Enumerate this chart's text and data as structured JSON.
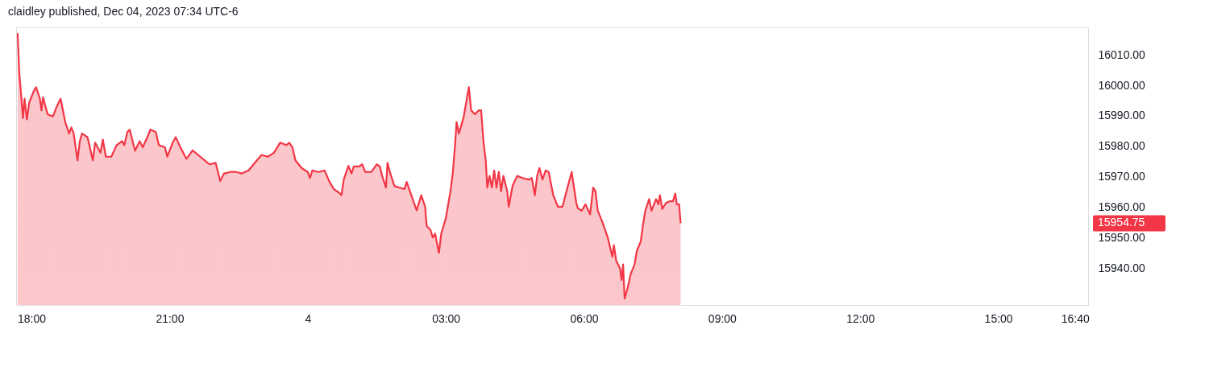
{
  "chart_data": {
    "type": "area",
    "title": "claidley published, Dec 04, 2023 07:34 UTC-6",
    "x": [
      "2023-12-03T17:42",
      "2023-12-03T17:44",
      "2023-12-03T17:49",
      "2023-12-03T17:51",
      "2023-12-03T17:54",
      "2023-12-03T17:57",
      "2023-12-03T18:03",
      "2023-12-03T18:06",
      "2023-12-03T18:11",
      "2023-12-03T18:13",
      "2023-12-03T18:15",
      "2023-12-03T18:21",
      "2023-12-03T18:28",
      "2023-12-03T18:33",
      "2023-12-03T18:38",
      "2023-12-03T18:44",
      "2023-12-03T18:49",
      "2023-12-03T18:52",
      "2023-12-03T18:55",
      "2023-12-03T19:00",
      "2023-12-03T19:03",
      "2023-12-03T19:06",
      "2023-12-03T19:13",
      "2023-12-03T19:20",
      "2023-12-03T19:23",
      "2023-12-03T19:30",
      "2023-12-03T19:33",
      "2023-12-03T19:37",
      "2023-12-03T19:44",
      "2023-12-03T19:51",
      "2023-12-03T19:58",
      "2023-12-03T20:01",
      "2023-12-03T20:05",
      "2023-12-03T20:08",
      "2023-12-03T20:15",
      "2023-12-03T20:21",
      "2023-12-03T20:25",
      "2023-12-03T20:31",
      "2023-12-03T20:35",
      "2023-12-03T20:42",
      "2023-12-03T20:46",
      "2023-12-03T20:54",
      "2023-12-03T20:57",
      "2023-12-03T21:04",
      "2023-12-03T21:08",
      "2023-12-03T21:15",
      "2023-12-03T21:22",
      "2023-12-03T21:30",
      "2023-12-03T21:40",
      "2023-12-03T21:52",
      "2023-12-03T22:00",
      "2023-12-03T22:06",
      "2023-12-03T22:11",
      "2023-12-03T22:19",
      "2023-12-03T22:27",
      "2023-12-03T22:34",
      "2023-12-03T22:43",
      "2023-12-03T22:52",
      "2023-12-03T23:00",
      "2023-12-03T23:08",
      "2023-12-03T23:16",
      "2023-12-03T23:24",
      "2023-12-03T23:32",
      "2023-12-03T23:36",
      "2023-12-03T23:40",
      "2023-12-03T23:44",
      "2023-12-03T23:52",
      "2023-12-04T00:00",
      "2023-12-04T00:03",
      "2023-12-04T00:06",
      "2023-12-04T00:14",
      "2023-12-04T00:22",
      "2023-12-04T00:28",
      "2023-12-04T00:34",
      "2023-12-04T00:41",
      "2023-12-04T00:44",
      "2023-12-04T00:47",
      "2023-12-04T00:53",
      "2023-12-04T00:57",
      "2023-12-04T01:00",
      "2023-12-04T01:07",
      "2023-12-04T01:11",
      "2023-12-04T01:15",
      "2023-12-04T01:23",
      "2023-12-04T01:30",
      "2023-12-04T01:34",
      "2023-12-04T01:37",
      "2023-12-04T01:42",
      "2023-12-04T01:44",
      "2023-12-04T01:47",
      "2023-12-04T01:53",
      "2023-12-04T01:59",
      "2023-12-04T02:06",
      "2023-12-04T02:09",
      "2023-12-04T02:15",
      "2023-12-04T02:22",
      "2023-12-04T02:28",
      "2023-12-04T02:33",
      "2023-12-04T02:35",
      "2023-12-04T02:40",
      "2023-12-04T02:43",
      "2023-12-04T02:46",
      "2023-12-04T02:51",
      "2023-12-04T02:54",
      "2023-12-04T03:00",
      "2023-12-04T03:06",
      "2023-12-04T03:09",
      "2023-12-04T03:12",
      "2023-12-04T03:14",
      "2023-12-04T03:17",
      "2023-12-04T03:23",
      "2023-12-04T03:30",
      "2023-12-04T03:33",
      "2023-12-04T03:38",
      "2023-12-04T03:43",
      "2023-12-04T03:46",
      "2023-12-04T03:49",
      "2023-12-04T03:52",
      "2023-12-04T03:54",
      "2023-12-04T03:57",
      "2023-12-04T04:00",
      "2023-12-04T04:03",
      "2023-12-04T04:06",
      "2023-12-04T04:09",
      "2023-12-04T04:12",
      "2023-12-04T04:15",
      "2023-12-04T04:20",
      "2023-12-04T04:22",
      "2023-12-04T04:27",
      "2023-12-04T04:33",
      "2023-12-04T04:40",
      "2023-12-04T04:48",
      "2023-12-04T04:52",
      "2023-12-04T04:56",
      "2023-12-04T04:59",
      "2023-12-04T05:02",
      "2023-12-04T05:06",
      "2023-12-04T05:10",
      "2023-12-04T05:14",
      "2023-12-04T05:20",
      "2023-12-04T05:26",
      "2023-12-04T05:32",
      "2023-12-04T05:38",
      "2023-12-04T05:44",
      "2023-12-04T05:50",
      "2023-12-04T05:52",
      "2023-12-04T05:57",
      "2023-12-04T06:02",
      "2023-12-04T06:08",
      "2023-12-04T06:12",
      "2023-12-04T06:15",
      "2023-12-04T06:18",
      "2023-12-04T06:24",
      "2023-12-04T06:31",
      "2023-12-04T06:37",
      "2023-12-04T06:39",
      "2023-12-04T06:42",
      "2023-12-04T06:47",
      "2023-12-04T06:49",
      "2023-12-04T06:51",
      "2023-12-04T06:53",
      "2023-12-04T06:57",
      "2023-12-04T07:01",
      "2023-12-04T07:06",
      "2023-12-04T07:09",
      "2023-12-04T07:14",
      "2023-12-04T07:17",
      "2023-12-04T07:20",
      "2023-12-04T07:25",
      "2023-12-04T07:28",
      "2023-12-04T07:34",
      "2023-12-04T07:37",
      "2023-12-04T07:39",
      "2023-12-04T07:42",
      "2023-12-04T07:47",
      "2023-12-04T07:52",
      "2023-12-04T07:56",
      "2023-12-04T07:59",
      "2023-12-04T08:01",
      "2023-12-04T08:04",
      "2023-12-04T08:06"
    ],
    "series": [
      {
        "color": "#f23645",
        "values": [
          16017.1,
          16004.4,
          15989.3,
          15995.6,
          15988.8,
          15994.3,
          15998.1,
          15999.4,
          15995.6,
          15991.8,
          15996.1,
          15990.5,
          15989.8,
          15993.1,
          15995.6,
          15988.0,
          15984.2,
          15986.2,
          15984.2,
          15975.4,
          15981.7,
          15984.2,
          15983.0,
          15975.4,
          15981.2,
          15977.9,
          15982.2,
          15976.6,
          15976.6,
          15980.4,
          15981.7,
          15980.4,
          15984.7,
          15985.5,
          15978.6,
          15981.7,
          15979.7,
          15983.0,
          15985.5,
          15984.7,
          15980.4,
          15979.7,
          15976.6,
          15981.2,
          15983.0,
          15979.2,
          15975.9,
          15978.7,
          15976.6,
          15974.1,
          15974.6,
          15968.6,
          15971.1,
          15971.6,
          15971.6,
          15971.1,
          15972.1,
          15974.9,
          15977.2,
          15976.6,
          15977.9,
          15981.2,
          15980.4,
          15981.2,
          15979.7,
          15975.4,
          15972.9,
          15971.6,
          15969.6,
          15972.1,
          15971.6,
          15972.1,
          15968.6,
          15966.0,
          15964.8,
          15964.0,
          15969.1,
          15973.6,
          15971.1,
          15973.4,
          15973.4,
          15974.1,
          15971.6,
          15971.6,
          15974.1,
          15973.4,
          15970.3,
          15966.5,
          15974.6,
          15971.6,
          15967.0,
          15966.5,
          15966.0,
          15968.3,
          15964.0,
          15959.0,
          15964.0,
          15960.2,
          15953.9,
          15952.6,
          15950.1,
          15951.4,
          15945.1,
          15951.4,
          15956.4,
          15965.3,
          15971.1,
          15980.4,
          15988.0,
          15984.2,
          15989.3,
          15999.4,
          15991.8,
          15990.5,
          15991.8,
          15991.8,
          15981.7,
          15975.4,
          15966.5,
          15970.3,
          15966.5,
          15972.1,
          15966.5,
          15971.6,
          15965.3,
          15970.3,
          15965.3,
          15960.2,
          15967.1,
          15970.3,
          15969.6,
          15969.1,
          15969.6,
          15964.0,
          15970.3,
          15972.9,
          15969.1,
          15972.1,
          15971.6,
          15964.0,
          15960.2,
          15960.2,
          15966.0,
          15971.6,
          15961.5,
          15959.7,
          15958.9,
          15961.0,
          15957.7,
          15966.5,
          15965.3,
          15958.9,
          15955.2,
          15950.1,
          15943.8,
          15947.6,
          15942.5,
          15940.0,
          15936.2,
          15941.3,
          15930.1,
          15933.7,
          15938.2,
          15941.3,
          15945.8,
          15948.8,
          15954.4,
          15958.9,
          15962.7,
          15958.9,
          15962.7,
          15961.0,
          15964.0,
          15959.5,
          15961.5,
          15962.0,
          15962.0,
          15964.5,
          15961.0,
          15961.0,
          15954.8
        ]
      }
    ],
    "xlim": [
      "2023-12-03T17:40",
      "2023-12-04T16:57"
    ],
    "xticks": [
      {
        "value": "2023-12-03T18:00",
        "label": "18:00"
      },
      {
        "value": "2023-12-03T21:00",
        "label": "21:00"
      },
      {
        "value": "2023-12-04T00:00",
        "label": "4"
      },
      {
        "value": "2023-12-04T03:00",
        "label": "03:00"
      },
      {
        "value": "2023-12-04T06:00",
        "label": "06:00"
      },
      {
        "value": "2023-12-04T09:00",
        "label": "09:00"
      },
      {
        "value": "2023-12-04T12:00",
        "label": "12:00"
      },
      {
        "value": "2023-12-04T15:00",
        "label": "15:00"
      },
      {
        "value": "2023-12-04T16:40",
        "label": "16:40"
      }
    ],
    "ylim": [
      15928,
      16019
    ],
    "yticks": [
      {
        "value": 15940,
        "label": "15940.00"
      },
      {
        "value": 15950,
        "label": "15950.00"
      },
      {
        "value": 15960,
        "label": "15960.00"
      },
      {
        "value": 15970,
        "label": "15970.00"
      },
      {
        "value": 15980,
        "label": "15980.00"
      },
      {
        "value": 15990,
        "label": "15990.00"
      },
      {
        "value": 16000,
        "label": "16000.00"
      },
      {
        "value": 16010,
        "label": "16010.00"
      }
    ],
    "annotations": [
      "15954.75"
    ]
  }
}
